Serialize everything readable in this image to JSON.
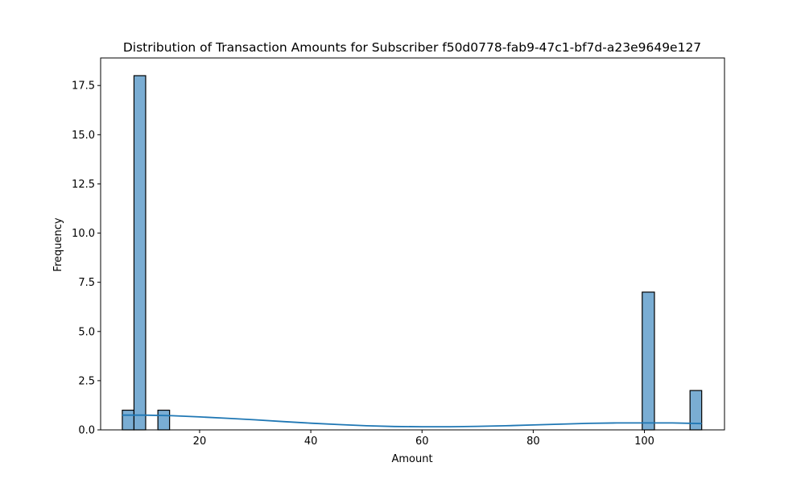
{
  "chart_data": {
    "type": "histogram",
    "title": "Distribution of Transaction Amounts for Subscriber f50d0778-fab9-47c1-bf7d-a23e9649e127",
    "xlabel": "Amount",
    "ylabel": "Frequency",
    "xlim": [
      2.2,
      114.4
    ],
    "ylim": [
      0,
      18.9
    ],
    "x_ticks": [
      20,
      40,
      60,
      80,
      100
    ],
    "y_ticks": [
      0.0,
      2.5,
      5.0,
      7.5,
      10.0,
      12.5,
      15.0,
      17.5
    ],
    "y_tick_labels": [
      "0.0",
      "2.5",
      "5.0",
      "7.5",
      "10.0",
      "12.5",
      "15.0",
      "17.5"
    ],
    "bins": [
      {
        "x0": 6.1,
        "x1": 8.2,
        "count": 1
      },
      {
        "x0": 8.2,
        "x1": 10.3,
        "count": 18
      },
      {
        "x0": 12.5,
        "x1": 14.6,
        "count": 1
      },
      {
        "x0": 99.6,
        "x1": 101.8,
        "count": 7
      },
      {
        "x0": 108.2,
        "x1": 110.3,
        "count": 2
      }
    ],
    "kde": {
      "x": [
        6.1,
        10,
        15,
        20,
        25,
        30,
        35,
        40,
        45,
        50,
        55,
        60,
        65,
        70,
        75,
        80,
        85,
        90,
        95,
        100,
        105,
        110.3
      ],
      "y": [
        0.75,
        0.75,
        0.72,
        0.66,
        0.59,
        0.51,
        0.42,
        0.34,
        0.27,
        0.21,
        0.17,
        0.16,
        0.16,
        0.18,
        0.21,
        0.25,
        0.29,
        0.33,
        0.35,
        0.35,
        0.35,
        0.32
      ]
    },
    "colors": {
      "bar_fill": "#7aadd3",
      "bar_edge": "#000000",
      "kde_line": "#1f77b4"
    },
    "grid": false,
    "legend": "none"
  }
}
